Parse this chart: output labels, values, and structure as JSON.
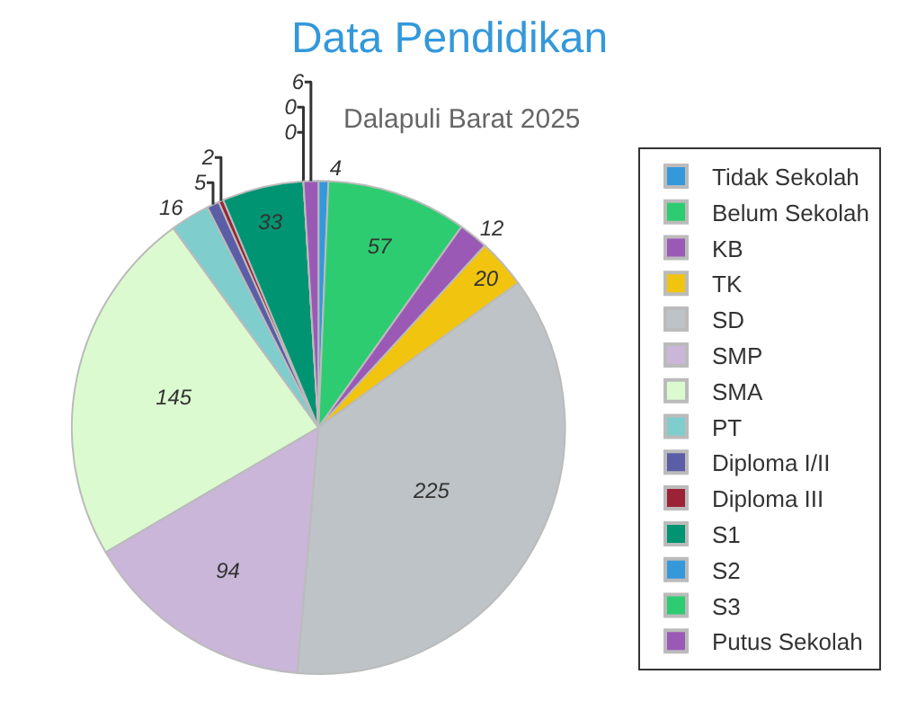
{
  "chart_data": {
    "type": "pie",
    "title": "Data Pendidikan",
    "subtitle": "Dalapuli Barat 2025",
    "categories": [
      "Tidak Sekolah",
      "Belum Sekolah",
      "KB",
      "TK",
      "SD",
      "SMP",
      "SMA",
      "PT",
      "Diploma I/II",
      "Diploma III",
      "S1",
      "S2",
      "S3",
      "Putus Sekolah"
    ],
    "values": [
      4,
      57,
      12,
      20,
      225,
      94,
      145,
      16,
      5,
      2,
      33,
      0,
      0,
      6
    ],
    "colors": [
      "#3498db",
      "#2ecc71",
      "#9b59b6",
      "#f1c40f",
      "#bdc3c7",
      "#c9b6d9",
      "#dcfad0",
      "#7fcdcd",
      "#5b5ea6",
      "#9b2335",
      "#009473",
      "#3498db",
      "#2ecc71",
      "#9b59b6"
    ],
    "value_labels": [
      "4",
      "57",
      "12",
      "20",
      "225",
      "94",
      "145",
      "16",
      "5",
      "2",
      "33",
      "0",
      "0",
      "6"
    ],
    "legend": "right"
  }
}
